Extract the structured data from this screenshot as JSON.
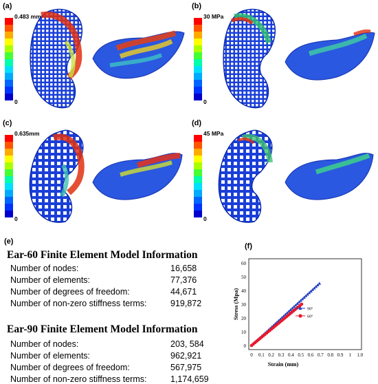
{
  "panels": [
    {
      "label": "(a)",
      "max": "0.483 mm",
      "min": "0"
    },
    {
      "label": "(b)",
      "max": "30 MPa",
      "min": "0"
    },
    {
      "label": "(c)",
      "max": "0.635mm",
      "min": "0"
    },
    {
      "label": "(d)",
      "max": "45 MPa",
      "min": "0"
    }
  ],
  "colorbar": [
    "#ff0000",
    "#ff5500",
    "#ffaa00",
    "#ffff00",
    "#aaff00",
    "#44ff33",
    "#00ffaa",
    "#00e0ff",
    "#00aaff",
    "#0066ff",
    "#0033ff",
    "#0000cc"
  ],
  "panel_e": {
    "label": "(e)",
    "tables": [
      {
        "title": "Ear-60 Finite Element Model Information",
        "rows": [
          {
            "label": "Number of nodes:",
            "value": "16,658"
          },
          {
            "label": "Number of elements:",
            "value": "77,376"
          },
          {
            "label": "Number of degrees of freedom:",
            "value": "44,671"
          },
          {
            "label": "Number of non-zero stiffness terms:",
            "value": "919,872"
          }
        ]
      },
      {
        "title": "Ear-90 Finite Element Model Information",
        "rows": [
          {
            "label": "Number of nodes:",
            "value": "203, 584"
          },
          {
            "label": "Number of elements:",
            "value": "962,921"
          },
          {
            "label": "Number of degrees of freedom:",
            "value": "567,975"
          },
          {
            "label": "Number of non-zero stiffness terms:",
            "value": "1,174,659"
          }
        ]
      }
    ]
  },
  "panel_f_label": "(f)",
  "chart_data": {
    "type": "line",
    "xlabel": "Strain (mm)",
    "ylabel": "Stress (Mpa)",
    "xlim": [
      0,
      1.0
    ],
    "ylim": [
      0,
      60
    ],
    "xticks": [
      "0",
      "0.1",
      "0.2",
      "0.3",
      "0.4",
      "0.5",
      "0.6",
      "0.7",
      "0.8",
      "0.9",
      "1",
      "1.0"
    ],
    "yticks": [
      "0",
      "10",
      "20",
      "30",
      "40",
      "50",
      "60"
    ],
    "legend_position": "center-right",
    "series": [
      {
        "name": "90°",
        "color": "#1f3fbf",
        "marker": "triangle",
        "x": [
          0,
          0.65
        ],
        "y": [
          0,
          45
        ]
      },
      {
        "name": "60°",
        "color": "#e8192c",
        "marker": "circle",
        "x": [
          0,
          0.48
        ],
        "y": [
          0,
          30
        ]
      }
    ]
  }
}
